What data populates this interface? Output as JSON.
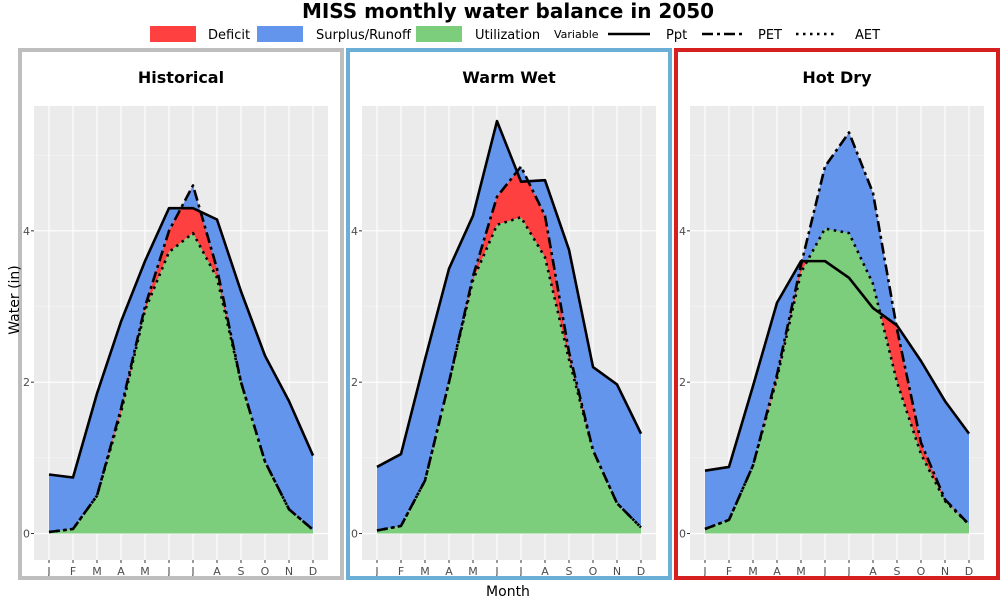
{
  "title": "MISS monthly water balance in 2050",
  "legend": {
    "fill_items": [
      {
        "label": "Deficit",
        "color": "#ff4040"
      },
      {
        "label": "Surplus/Runoff",
        "color": "#6495ed"
      },
      {
        "label": "Utilization",
        "color": "#7ccd7c"
      }
    ],
    "line_title": "Variable",
    "line_items": [
      {
        "label": "Ppt",
        "style": "solid"
      },
      {
        "label": "PET",
        "style": "dashdot"
      },
      {
        "label": "AET",
        "style": "dotted"
      }
    ]
  },
  "chart_data": {
    "type": "area",
    "xlabel": "Month",
    "ylabel": "Water (in)",
    "categories": [
      "J",
      "F",
      "M",
      "A",
      "M",
      "J",
      "J",
      "A",
      "S",
      "O",
      "N",
      "D"
    ],
    "ylim": [
      -0.35,
      5.65
    ],
    "yticks": [
      0,
      2,
      4
    ],
    "grid": true,
    "legend_position": "top",
    "facets": [
      {
        "name": "Historical",
        "border_color": "#bebebe",
        "series": [
          {
            "name": "Ppt",
            "values": [
              0.78,
              0.74,
              1.85,
              2.8,
              3.6,
              4.3,
              4.3,
              4.15,
              3.2,
              2.35,
              1.75,
              1.03
            ]
          },
          {
            "name": "PET",
            "values": [
              0.02,
              0.06,
              0.5,
              1.65,
              3.0,
              4.0,
              4.6,
              3.5,
              2.0,
              0.95,
              0.32,
              0.05
            ]
          },
          {
            "name": "AET",
            "values": [
              0.02,
              0.06,
              0.5,
              1.6,
              2.95,
              3.72,
              3.97,
              3.38,
              2.0,
              0.95,
              0.32,
              0.05
            ]
          }
        ]
      },
      {
        "name": "Warm Wet",
        "border_color": "#6baed6",
        "series": [
          {
            "name": "Ppt",
            "values": [
              0.88,
              1.05,
              2.3,
              3.5,
              4.2,
              5.45,
              4.65,
              4.67,
              3.75,
              2.2,
              1.97,
              1.32
            ]
          },
          {
            "name": "PET",
            "values": [
              0.04,
              0.1,
              0.7,
              2.0,
              3.4,
              4.45,
              4.85,
              4.2,
              2.4,
              1.1,
              0.4,
              0.08
            ]
          },
          {
            "name": "AET",
            "values": [
              0.04,
              0.1,
              0.7,
              2.0,
              3.35,
              4.08,
              4.18,
              3.65,
              2.3,
              1.1,
              0.4,
              0.08
            ]
          }
        ]
      },
      {
        "name": "Hot Dry",
        "border_color": "#d62020",
        "series": [
          {
            "name": "Ppt",
            "values": [
              0.83,
              0.88,
              1.95,
              3.05,
              3.6,
              3.6,
              3.38,
              2.98,
              2.75,
              2.28,
              1.75,
              1.32
            ]
          },
          {
            "name": "PET",
            "values": [
              0.06,
              0.18,
              0.9,
              2.1,
              3.55,
              4.85,
              5.3,
              4.5,
              2.7,
              1.2,
              0.45,
              0.12
            ]
          },
          {
            "name": "AET",
            "values": [
              0.06,
              0.18,
              0.9,
              2.05,
              3.45,
              4.03,
              3.97,
              3.3,
              2.0,
              1.05,
              0.43,
              0.12
            ]
          }
        ]
      }
    ]
  }
}
